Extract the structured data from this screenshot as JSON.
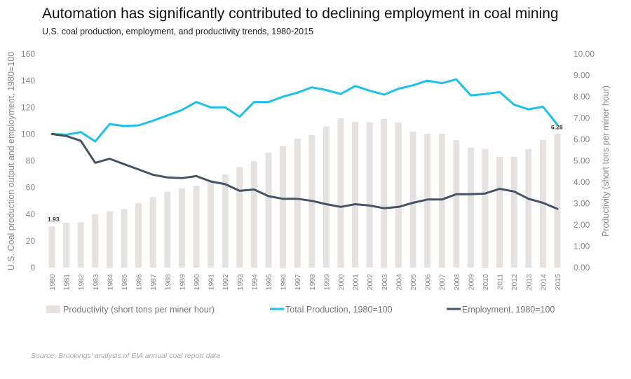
{
  "chart_data": {
    "type": "bar",
    "title": "Automation has significantly contributed to declining employment in coal mining",
    "subtitle": "U.S. coal production, employment, and productivity trends, 1980-2015",
    "source": "Source: Brookings' analysis of EIA annual coal report data",
    "ylabel_left": "U.S. Coal production output and employment, 1980=100",
    "ylabel_right": "Productivity (short tons per miner hour)",
    "ylim_left": [
      0,
      160
    ],
    "ylim_right": [
      0,
      10
    ],
    "yticks_left": [
      "0",
      "20",
      "40",
      "60",
      "80",
      "100",
      "120",
      "140",
      "160"
    ],
    "yticks_right": [
      "0.00",
      "1.00",
      "2.00",
      "3.00",
      "4.00",
      "5.00",
      "6.00",
      "7.00",
      "8.00",
      "9.00",
      "10.00"
    ],
    "categories": [
      "1980",
      "1981",
      "1982",
      "1983",
      "1984",
      "1985",
      "1986",
      "1987",
      "1988",
      "1989",
      "1990",
      "1991",
      "1992",
      "1993",
      "1994",
      "1995",
      "1996",
      "1997",
      "1998",
      "1999",
      "2000",
      "2001",
      "2002",
      "2003",
      "2004",
      "2005",
      "2006",
      "2007",
      "2008",
      "2009",
      "2010",
      "2011",
      "2012",
      "2013",
      "2014",
      "2015"
    ],
    "series": [
      {
        "name": "Productivity (short tons per miner hour)",
        "kind": "bar",
        "axis": "right",
        "color": "#e6e2e2",
        "values": [
          1.93,
          2.1,
          2.12,
          2.5,
          2.64,
          2.74,
          3.01,
          3.3,
          3.55,
          3.7,
          3.83,
          4.09,
          4.36,
          4.7,
          4.98,
          5.38,
          5.69,
          6.04,
          6.2,
          6.61,
          6.99,
          6.82,
          6.8,
          6.95,
          6.8,
          6.36,
          6.26,
          6.26,
          5.96,
          5.61,
          5.55,
          5.19,
          5.19,
          5.55,
          5.98,
          6.28
        ]
      },
      {
        "name": "Total Production, 1980=100",
        "kind": "line",
        "axis": "left",
        "color": "#1ec0ec",
        "values": [
          100,
          99.5,
          101.5,
          94.5,
          107.5,
          106,
          106.5,
          110,
          114,
          118,
          124,
          120,
          120,
          113,
          124,
          124,
          128,
          131,
          135,
          133,
          130,
          136,
          132.5,
          129.5,
          134,
          136.5,
          140,
          138,
          141,
          129,
          130,
          131.5,
          122,
          118.5,
          120.5,
          107
        ]
      },
      {
        "name": "Employment, 1980=100",
        "kind": "line",
        "axis": "left",
        "color": "#475465",
        "values": [
          100,
          98.5,
          95,
          78.5,
          81.5,
          77.5,
          73.5,
          69.5,
          67.5,
          67,
          68.5,
          64.5,
          62.5,
          57.5,
          58.5,
          53.5,
          51.5,
          51.5,
          50,
          47.5,
          45.5,
          47.5,
          46.5,
          44.5,
          45.5,
          48.5,
          51,
          51,
          55,
          55,
          55.5,
          59,
          57,
          51.5,
          48.5,
          44
        ]
      }
    ],
    "annotations": [
      "1.93",
      "6.28"
    ],
    "legend_position": "bottom"
  }
}
